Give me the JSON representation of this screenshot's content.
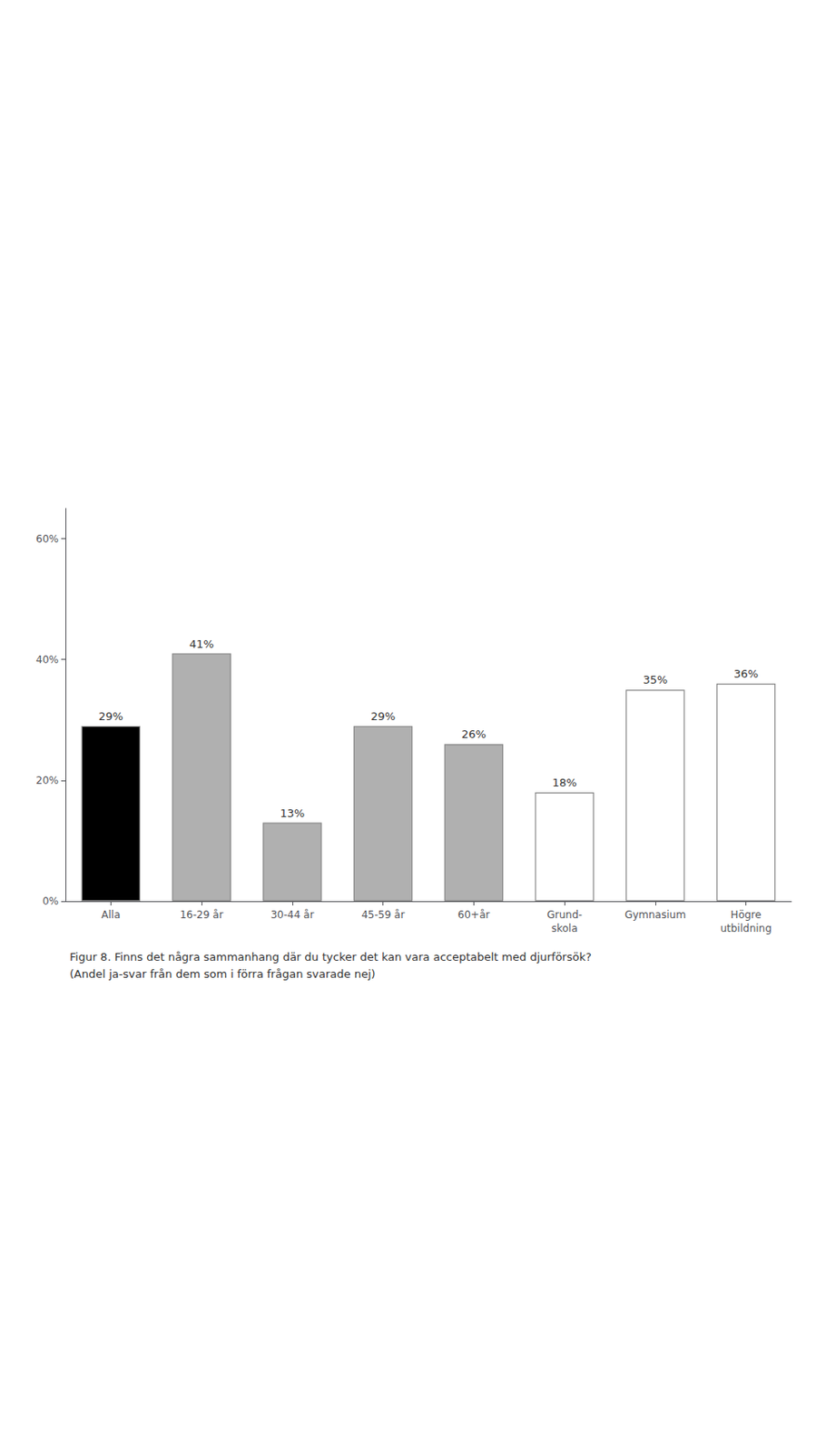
{
  "chart_data": {
    "type": "bar",
    "title": "Figur 8. Finns det några sammanhang där du tycker det kan vara acceptabelt med djurförsök?\n(Andel ja-svar från dem som i förra frågan svarade nej)",
    "categories": [
      "Alla",
      "16-29 år",
      "30-44 år",
      "45-59 år",
      "60+år",
      "Grund-\nskola",
      "Gymnasium",
      "Högre\nutbildning"
    ],
    "values": [
      29,
      41,
      13,
      29,
      26,
      18,
      35,
      36
    ],
    "value_labels": [
      "29%",
      "41%",
      "13%",
      "29%",
      "26%",
      "18%",
      "35%",
      "36%"
    ],
    "colors": [
      "#000000",
      "#b0b0b0",
      "#b0b0b0",
      "#b0b0b0",
      "#b0b0b0",
      "#ffffff",
      "#ffffff",
      "#ffffff"
    ],
    "ylim": [
      0,
      65
    ],
    "yticks": [
      {
        "value": 0,
        "label": "0%"
      },
      {
        "value": 20,
        "label": "20%"
      },
      {
        "value": 40,
        "label": "40%"
      },
      {
        "value": 60,
        "label": "60%"
      }
    ],
    "grid": false,
    "data_labels": true
  }
}
